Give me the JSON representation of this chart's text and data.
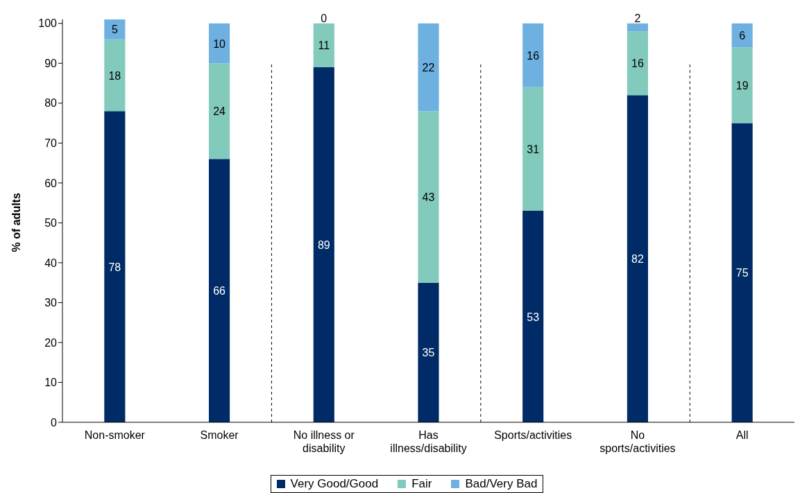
{
  "chart_data": {
    "type": "bar",
    "stacked": true,
    "ylabel": "% of adults",
    "categories": [
      "Non-smoker",
      "Smoker",
      "No illness or disability",
      "Has illness/disability",
      "Sports/activities",
      "No sports/activities",
      "All"
    ],
    "series": [
      {
        "name": "Very Good/Good",
        "color": "#002b66",
        "values": [
          78,
          66,
          89,
          35,
          53,
          82,
          75
        ]
      },
      {
        "name": "Fair",
        "color": "#82cbbc",
        "values": [
          18,
          24,
          11,
          43,
          31,
          16,
          19
        ]
      },
      {
        "name": "Bad/Very Bad",
        "color": "#6eb1e1",
        "values": [
          5,
          10,
          0,
          22,
          16,
          2,
          6
        ]
      }
    ],
    "data_labels": true,
    "ylim": [
      0,
      101
    ],
    "yticks": [
      0,
      10,
      20,
      30,
      40,
      50,
      60,
      70,
      80,
      90,
      100
    ],
    "grid": false,
    "legend": "bottom"
  }
}
